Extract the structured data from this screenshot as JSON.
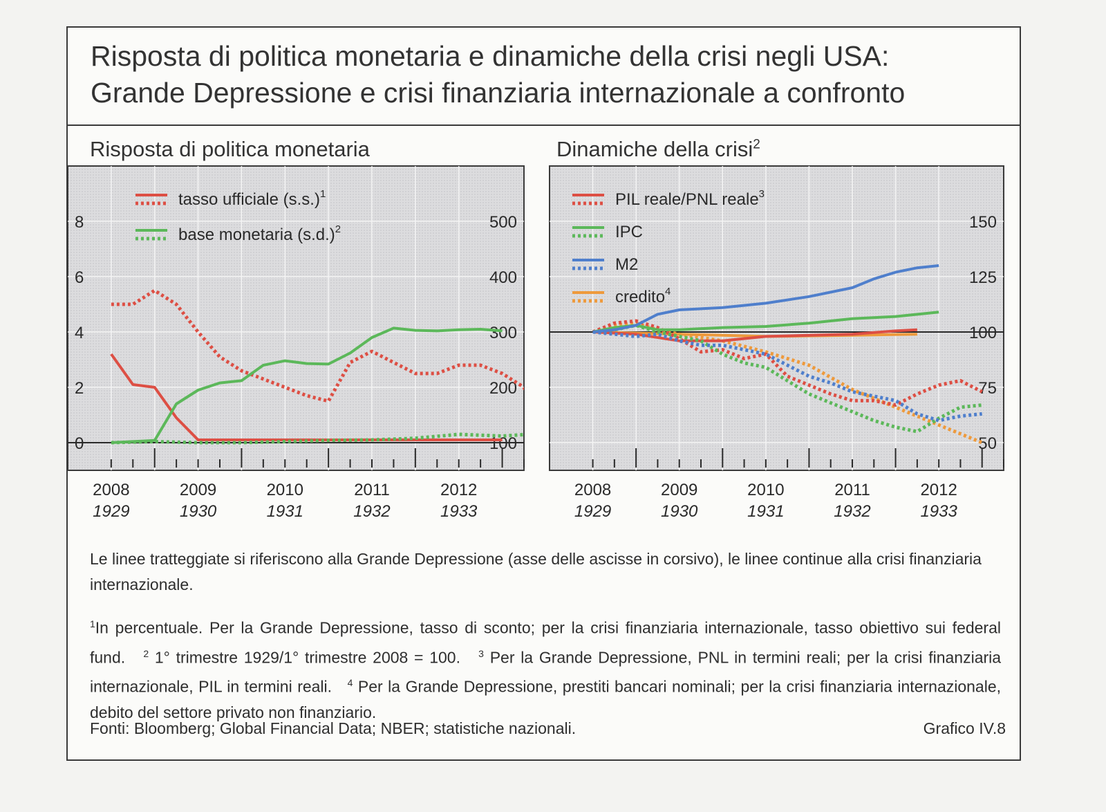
{
  "title": {
    "line1": "Risposta di politica monetaria e dinamiche della crisi negli USA:",
    "line2": "Grande Depressione e crisi finanziaria internazionale a confronto"
  },
  "panels": {
    "left_title": "Risposta di politica monetaria",
    "right_title": "Dinamiche della crisi",
    "right_title_sup": "2"
  },
  "colors": {
    "red": "#dd4f44",
    "green": "#5cb85a",
    "blue": "#4f7fcc",
    "orange": "#ee9a3c",
    "plot_bg": "#dcdcde",
    "grid": "#f4f4f4"
  },
  "chart_data": [
    {
      "type": "line",
      "title": "Risposta di politica monetaria",
      "x_labels": [
        "2008",
        "2009",
        "2010",
        "2011",
        "2012"
      ],
      "x_labels_alt": [
        "1929",
        "1930",
        "1931",
        "1932",
        "1933"
      ],
      "xlim": [
        2007.5,
        2012.75
      ],
      "y_left": {
        "ticks": [
          "0",
          "2",
          "4",
          "6",
          "8"
        ],
        "ylim": [
          -1,
          10
        ]
      },
      "y_right": {
        "ticks": [
          "100",
          "200",
          "300",
          "400",
          "500"
        ],
        "ylim": [
          50,
          600
        ]
      },
      "legend": [
        {
          "label": "tasso ufficiale (s.s.)",
          "sup": "1",
          "color": "#dd4f44"
        },
        {
          "label": "base monetaria (s.d.)",
          "sup": "2",
          "color": "#5cb85a"
        }
      ],
      "series": [
        {
          "name": "tasso ufficiale (s.s.)",
          "axis": "left",
          "style": "solid",
          "color": "#dd4f44",
          "x": [
            2008.0,
            2008.25,
            2008.5,
            2008.75,
            2009.0,
            2009.5,
            2010.0,
            2010.5,
            2011.0,
            2011.5,
            2012.0,
            2012.5
          ],
          "y": [
            3.2,
            2.1,
            2.0,
            0.9,
            0.1,
            0.1,
            0.1,
            0.1,
            0.1,
            0.1,
            0.1,
            0.1
          ]
        },
        {
          "name": "tasso ufficiale (s.s.)",
          "axis": "left",
          "style": "dotted",
          "color": "#dd4f44",
          "x": [
            2008.0,
            2008.25,
            2008.5,
            2008.75,
            2009.0,
            2009.25,
            2009.5,
            2009.75,
            2010.0,
            2010.25,
            2010.5,
            2010.75,
            2011.0,
            2011.25,
            2011.5,
            2011.75,
            2012.0,
            2012.25,
            2012.5,
            2012.75,
            2013.0
          ],
          "y": [
            5.0,
            5.0,
            5.5,
            5.0,
            4.0,
            3.1,
            2.6,
            2.3,
            2.0,
            1.7,
            1.5,
            2.9,
            3.3,
            2.9,
            2.5,
            2.5,
            2.8,
            2.8,
            2.5,
            2.0,
            0.1
          ]
        },
        {
          "name": "base monetaria (s.d.)",
          "axis": "right",
          "style": "solid",
          "color": "#5cb85a",
          "x": [
            2008.0,
            2008.25,
            2008.5,
            2008.75,
            2009.0,
            2009.25,
            2009.5,
            2009.75,
            2010.0,
            2010.25,
            2010.5,
            2010.75,
            2011.0,
            2011.25,
            2011.5,
            2011.75,
            2012.0,
            2012.25,
            2012.5
          ],
          "y": [
            100,
            102,
            104,
            170,
            195,
            208,
            212,
            240,
            248,
            243,
            242,
            262,
            290,
            307,
            303,
            302,
            304,
            305,
            302
          ]
        },
        {
          "name": "base monetaria (s.d.)",
          "axis": "right",
          "style": "dotted",
          "color": "#5cb85a",
          "x": [
            2008.0,
            2008.5,
            2009.0,
            2009.5,
            2010.0,
            2010.5,
            2011.0,
            2011.5,
            2012.0,
            2012.5,
            2013.0
          ],
          "y": [
            100,
            102,
            100,
            100,
            102,
            104,
            105,
            108,
            115,
            112,
            117
          ]
        }
      ]
    },
    {
      "type": "line",
      "title": "Dinamiche della crisi",
      "x_labels": [
        "2008",
        "2009",
        "2010",
        "2011",
        "2012"
      ],
      "x_labels_alt": [
        "1929",
        "1930",
        "1931",
        "1932",
        "1933"
      ],
      "xlim": [
        2007.5,
        2012.75
      ],
      "y_right": {
        "ticks": [
          "50",
          "75",
          "100",
          "125",
          "150"
        ],
        "ylim": [
          37.5,
          175
        ]
      },
      "legend": [
        {
          "label": "PIL reale/PNL reale",
          "sup": "3",
          "color": "#dd4f44"
        },
        {
          "label": "IPC",
          "sup": "",
          "color": "#5cb85a"
        },
        {
          "label": "M2",
          "sup": "",
          "color": "#4f7fcc"
        },
        {
          "label": "credito",
          "sup": "4",
          "color": "#ee9a3c"
        }
      ],
      "series": [
        {
          "name": "credito",
          "style": "solid",
          "color": "#ee9a3c",
          "x": [
            2008.0,
            2009.0,
            2010.0,
            2011.0,
            2011.75
          ],
          "y": [
            100,
            99,
            98,
            98.5,
            99
          ]
        },
        {
          "name": "credito",
          "style": "dotted",
          "color": "#ee9a3c",
          "x": [
            2008.0,
            2008.25,
            2008.5,
            2008.75,
            2009.0,
            2009.5,
            2010.0,
            2010.5,
            2011.0,
            2011.5,
            2012.0,
            2012.5
          ],
          "y": [
            100,
            103,
            104,
            101,
            99,
            96,
            91,
            85,
            74,
            66,
            58,
            50
          ]
        },
        {
          "name": "PIL reale/PNL reale",
          "style": "solid",
          "color": "#dd4f44",
          "x": [
            2008.0,
            2008.5,
            2009.0,
            2009.5,
            2010.0,
            2010.5,
            2011.0,
            2011.5,
            2011.75
          ],
          "y": [
            100,
            99,
            96,
            96,
            98,
            98.5,
            99,
            100.5,
            101
          ]
        },
        {
          "name": "PIL reale/PNL reale",
          "style": "dotted",
          "color": "#dd4f44",
          "x": [
            2008.0,
            2008.25,
            2008.5,
            2008.75,
            2009.0,
            2009.25,
            2009.5,
            2009.75,
            2010.0,
            2010.25,
            2010.5,
            2010.75,
            2011.0,
            2011.25,
            2011.5,
            2011.75,
            2012.0,
            2012.25,
            2012.5
          ],
          "y": [
            100,
            104,
            105,
            102,
            97,
            91,
            92,
            88,
            90,
            80,
            76,
            72,
            69,
            69,
            67,
            72,
            76,
            78,
            73
          ]
        },
        {
          "name": "IPC",
          "style": "solid",
          "color": "#5cb85a",
          "x": [
            2008.0,
            2008.25,
            2008.5,
            2008.75,
            2009.0,
            2009.5,
            2010.0,
            2010.5,
            2011.0,
            2011.5,
            2012.0
          ],
          "y": [
            100,
            102,
            103,
            101,
            101,
            102,
            102.5,
            104,
            106,
            107,
            109
          ]
        },
        {
          "name": "IPC",
          "style": "dotted",
          "color": "#5cb85a",
          "x": [
            2008.0,
            2008.25,
            2008.5,
            2008.75,
            2009.0,
            2009.25,
            2009.5,
            2009.75,
            2010.0,
            2010.25,
            2010.5,
            2010.75,
            2011.0,
            2011.25,
            2011.5,
            2011.75,
            2012.0,
            2012.25,
            2012.5
          ],
          "y": [
            100,
            101,
            103,
            100,
            98,
            96,
            90,
            86,
            84,
            78,
            72,
            68,
            64,
            60,
            57,
            55,
            61,
            66,
            67
          ]
        },
        {
          "name": "M2",
          "style": "solid",
          "color": "#4f7fcc",
          "x": [
            2008.0,
            2008.25,
            2008.5,
            2008.75,
            2009.0,
            2009.5,
            2010.0,
            2010.5,
            2011.0,
            2011.25,
            2011.5,
            2011.75,
            2012.0
          ],
          "y": [
            100,
            101,
            103,
            108,
            110,
            111,
            113,
            116,
            120,
            124,
            127,
            129,
            130
          ]
        },
        {
          "name": "M2",
          "style": "dotted",
          "color": "#4f7fcc",
          "x": [
            2008.0,
            2008.25,
            2008.5,
            2008.75,
            2009.0,
            2009.25,
            2009.5,
            2009.75,
            2010.0,
            2010.25,
            2010.5,
            2010.75,
            2011.0,
            2011.25,
            2011.5,
            2011.75,
            2012.0,
            2012.25,
            2012.5
          ],
          "y": [
            100,
            99,
            98,
            99,
            96,
            94,
            94,
            92,
            90,
            85,
            80,
            77,
            73,
            71,
            69,
            63,
            60,
            62,
            63
          ]
        }
      ]
    }
  ],
  "footer": {
    "note": "Le linee tratteggiate si riferiscono alla Grande Depressione (asse delle ascisse in corsivo), le linee continue alla crisi finanziaria internazionale.",
    "fn1_mark": "1",
    "fn1": "In percentuale. Per la Grande Depressione, tasso di sconto; per la crisi finanziaria internazionale, tasso obiettivo sui federal fund.",
    "fn2_mark": "2",
    "fn2": "1° trimestre 1929/1° trimestre 2008 = 100.",
    "fn3_mark": "3",
    "fn3": "Per la Grande Depressione, PNL in termini reali; per la crisi finanziaria internazionale, PIL in termini reali.",
    "fn4_mark": "4",
    "fn4": "Per la Grande Depressione, prestiti bancari nominali; per la crisi finanziaria internazionale, debito del settore privato non finanziario.",
    "sources": "Fonti: Bloomberg; Global Financial Data; NBER; statistiche nazionali.",
    "graphic_number": "Grafico IV.8"
  }
}
